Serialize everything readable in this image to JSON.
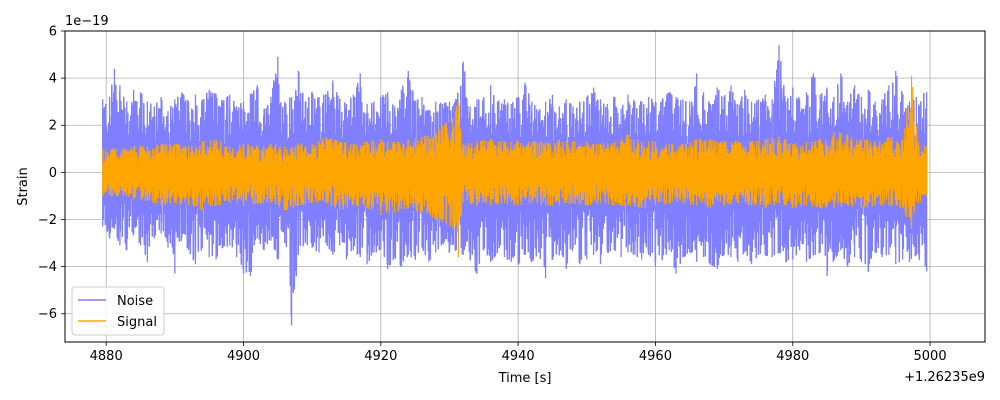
{
  "chart_data": {
    "type": "line",
    "title": "",
    "xlabel": "Time [s]",
    "ylabel": "Strain",
    "x_offset_label": "+1.26235e9",
    "y_scale_label": "1e−19",
    "xlim": [
      4874,
      5008
    ],
    "ylim": [
      -7.2,
      6
    ],
    "x_ticks": [
      4880,
      4900,
      4920,
      4940,
      4960,
      4980,
      5000
    ],
    "x_tick_labels": [
      "4880",
      "4900",
      "4920",
      "4940",
      "4960",
      "4980",
      "5000"
    ],
    "y_ticks": [
      -6,
      -4,
      -2,
      0,
      2,
      4,
      6
    ],
    "y_tick_labels": [
      "−6",
      "−4",
      "−2",
      "0",
      "2",
      "4",
      "6"
    ],
    "grid": true,
    "legend_position": "lower-left",
    "series": [
      {
        "name": "Noise",
        "color": "#7f7fff",
        "x": [
          4879.5,
          4880.5,
          4881.2,
          4882,
          4883,
          4884,
          4885,
          4886,
          4887,
          4888,
          4889,
          4890,
          4891,
          4892,
          4893,
          4894,
          4895,
          4896,
          4897,
          4898,
          4899,
          4900,
          4901,
          4902,
          4903,
          4904,
          4905,
          4906,
          4907,
          4908,
          4909,
          4910,
          4911,
          4912,
          4913,
          4914,
          4915,
          4916,
          4917,
          4918,
          4919,
          4920,
          4921,
          4922,
          4923,
          4924,
          4925,
          4926,
          4927,
          4928,
          4929,
          4930,
          4931,
          4932,
          4933,
          4934,
          4935,
          4936,
          4937,
          4938,
          4939,
          4940,
          4941,
          4942,
          4943,
          4944,
          4945,
          4946,
          4947,
          4948,
          4949,
          4950,
          4951,
          4952,
          4953,
          4954,
          4955,
          4956,
          4957,
          4958,
          4959,
          4960,
          4961,
          4962,
          4963,
          4964,
          4965,
          4966,
          4967,
          4968,
          4969,
          4970,
          4971,
          4972,
          4973,
          4974,
          4975,
          4976,
          4977,
          4978,
          4979,
          4980,
          4981,
          4982,
          4983,
          4984,
          4985,
          4986,
          4987,
          4988,
          4989,
          4990,
          4991,
          4992,
          4993,
          4994,
          4995,
          4996,
          4997,
          4998,
          4999.5
        ],
        "y_max": [
          3.1,
          3.2,
          4.4,
          3.7,
          3.0,
          3.5,
          3.4,
          3.0,
          2.8,
          3.2,
          2.6,
          3.1,
          3.4,
          3.0,
          3.3,
          3.1,
          3.5,
          3.3,
          3.0,
          3.3,
          2.8,
          3.0,
          3.3,
          3.7,
          2.7,
          3.2,
          4.9,
          3.0,
          3.2,
          4.3,
          3.0,
          3.4,
          3.2,
          3.3,
          3.9,
          3.1,
          2.9,
          3.3,
          4.2,
          2.9,
          3.0,
          3.2,
          3.4,
          2.8,
          3.5,
          4.3,
          3.0,
          3.2,
          2.6,
          3.0,
          2.9,
          3.0,
          3.1,
          4.7,
          2.8,
          3.1,
          3.2,
          3.7,
          3.0,
          3.1,
          2.9,
          3.2,
          3.8,
          3.0,
          2.6,
          3.0,
          3.3,
          2.8,
          3.1,
          2.8,
          3.0,
          3.2,
          3.6,
          3.1,
          2.9,
          3.2,
          2.7,
          3.3,
          3.0,
          3.0,
          3.2,
          3.0,
          3.1,
          3.4,
          3.2,
          3.1,
          3.0,
          4.2,
          3.4,
          2.9,
          3.6,
          3.2,
          3.7,
          2.9,
          3.5,
          3.0,
          3.1,
          3.3,
          3.1,
          5.4,
          3.0,
          3.6,
          3.1,
          3.4,
          4.2,
          3.3,
          3.6,
          3.2,
          4.2,
          3.0,
          3.7,
          3.2,
          3.5,
          3.0,
          3.1,
          3.7,
          4.3,
          3.3,
          3.0,
          3.2,
          3.4
        ],
        "y_min": [
          -2.3,
          -2.8,
          -2.4,
          -3.1,
          -3.3,
          -2.6,
          -3.1,
          -3.8,
          -2.8,
          -2.6,
          -3.2,
          -4.3,
          -2.8,
          -3.3,
          -3.9,
          -3.2,
          -3.6,
          -3.7,
          -3.2,
          -3.1,
          -3.6,
          -4.3,
          -4.4,
          -2.8,
          -3.3,
          -2.9,
          -3.7,
          -3.0,
          -6.5,
          -3.4,
          -3.0,
          -3.2,
          -3.4,
          -3.0,
          -3.5,
          -3.1,
          -3.7,
          -3.3,
          -3.6,
          -3.9,
          -3.4,
          -3.3,
          -4.1,
          -3.6,
          -4.0,
          -3.5,
          -3.7,
          -3.2,
          -3.8,
          -3.4,
          -3.0,
          -3.4,
          -3.3,
          -3.5,
          -3.7,
          -4.3,
          -3.2,
          -3.8,
          -3.4,
          -3.6,
          -3.8,
          -3.9,
          -3.5,
          -3.8,
          -3.4,
          -4.5,
          -3.7,
          -3.5,
          -4.1,
          -3.2,
          -3.9,
          -3.7,
          -3.5,
          -3.9,
          -3.4,
          -3.3,
          -3.6,
          -3.4,
          -3.5,
          -3.7,
          -3.5,
          -4.0,
          -3.7,
          -3.3,
          -4.3,
          -3.6,
          -3.4,
          -3.8,
          -3.6,
          -3.9,
          -4.1,
          -3.5,
          -3.6,
          -3.8,
          -3.4,
          -3.9,
          -3.5,
          -3.5,
          -3.6,
          -3.4,
          -3.8,
          -3.7,
          -3.3,
          -3.8,
          -3.5,
          -3.4,
          -4.4,
          -3.7,
          -3.3,
          -4.0,
          -3.6,
          -3.8,
          -4.2,
          -3.4,
          -3.6,
          -3.5,
          -3.9,
          -3.7,
          -3.8,
          -3.5,
          -4.2
        ]
      },
      {
        "name": "Signal",
        "color": "#ffa500",
        "x": [
          4879.5,
          4881,
          4882.5,
          4884,
          4886,
          4888,
          4890,
          4892,
          4894,
          4896,
          4898,
          4900,
          4902,
          4904,
          4906,
          4908,
          4910,
          4912,
          4914,
          4916,
          4918,
          4920,
          4922,
          4924,
          4926,
          4928,
          4929.5,
          4930.5,
          4931.3,
          4932,
          4934,
          4936,
          4938,
          4940,
          4942,
          4944,
          4946,
          4948,
          4950,
          4952,
          4954,
          4956,
          4958,
          4960,
          4962,
          4964,
          4966,
          4968,
          4970,
          4972,
          4974,
          4976,
          4978,
          4980,
          4982,
          4984,
          4986,
          4988,
          4990,
          4992,
          4994,
          4996,
          4997.3,
          4998.3,
          4999.5
        ],
        "y_max": [
          1.0,
          1.0,
          1.0,
          1.1,
          1.1,
          1.2,
          1.2,
          1.1,
          1.3,
          1.4,
          1.1,
          1.2,
          1.1,
          1.2,
          1.1,
          1.2,
          1.2,
          1.5,
          1.3,
          1.2,
          1.3,
          1.4,
          1.3,
          1.4,
          1.5,
          1.7,
          2.1,
          2.3,
          3.0,
          1.2,
          1.3,
          1.4,
          1.3,
          1.3,
          1.3,
          1.3,
          1.4,
          1.3,
          1.3,
          1.2,
          1.3,
          1.6,
          1.3,
          1.3,
          1.2,
          1.2,
          1.4,
          1.4,
          1.3,
          1.3,
          1.3,
          1.4,
          1.5,
          1.2,
          1.3,
          1.4,
          1.7,
          1.6,
          1.4,
          1.3,
          1.5,
          1.4,
          4.1,
          1.3,
          1.1
        ],
        "y_min": [
          -1.0,
          -1.0,
          -1.0,
          -1.1,
          -1.2,
          -1.4,
          -1.3,
          -1.4,
          -1.6,
          -1.4,
          -1.3,
          -1.4,
          -1.3,
          -1.3,
          -1.6,
          -1.4,
          -1.3,
          -1.3,
          -1.6,
          -1.4,
          -1.5,
          -1.8,
          -1.7,
          -1.5,
          -1.7,
          -2.0,
          -2.2,
          -2.4,
          -3.6,
          -1.3,
          -1.4,
          -1.4,
          -1.3,
          -1.4,
          -1.3,
          -1.4,
          -1.4,
          -1.3,
          -1.4,
          -1.3,
          -1.4,
          -1.4,
          -1.5,
          -1.4,
          -1.3,
          -1.3,
          -1.4,
          -1.5,
          -1.4,
          -1.3,
          -1.4,
          -1.5,
          -1.3,
          -1.5,
          -1.4,
          -1.5,
          -1.5,
          -1.4,
          -1.5,
          -1.4,
          -1.4,
          -1.5,
          -2.4,
          -1.3,
          -1.0
        ]
      }
    ]
  }
}
